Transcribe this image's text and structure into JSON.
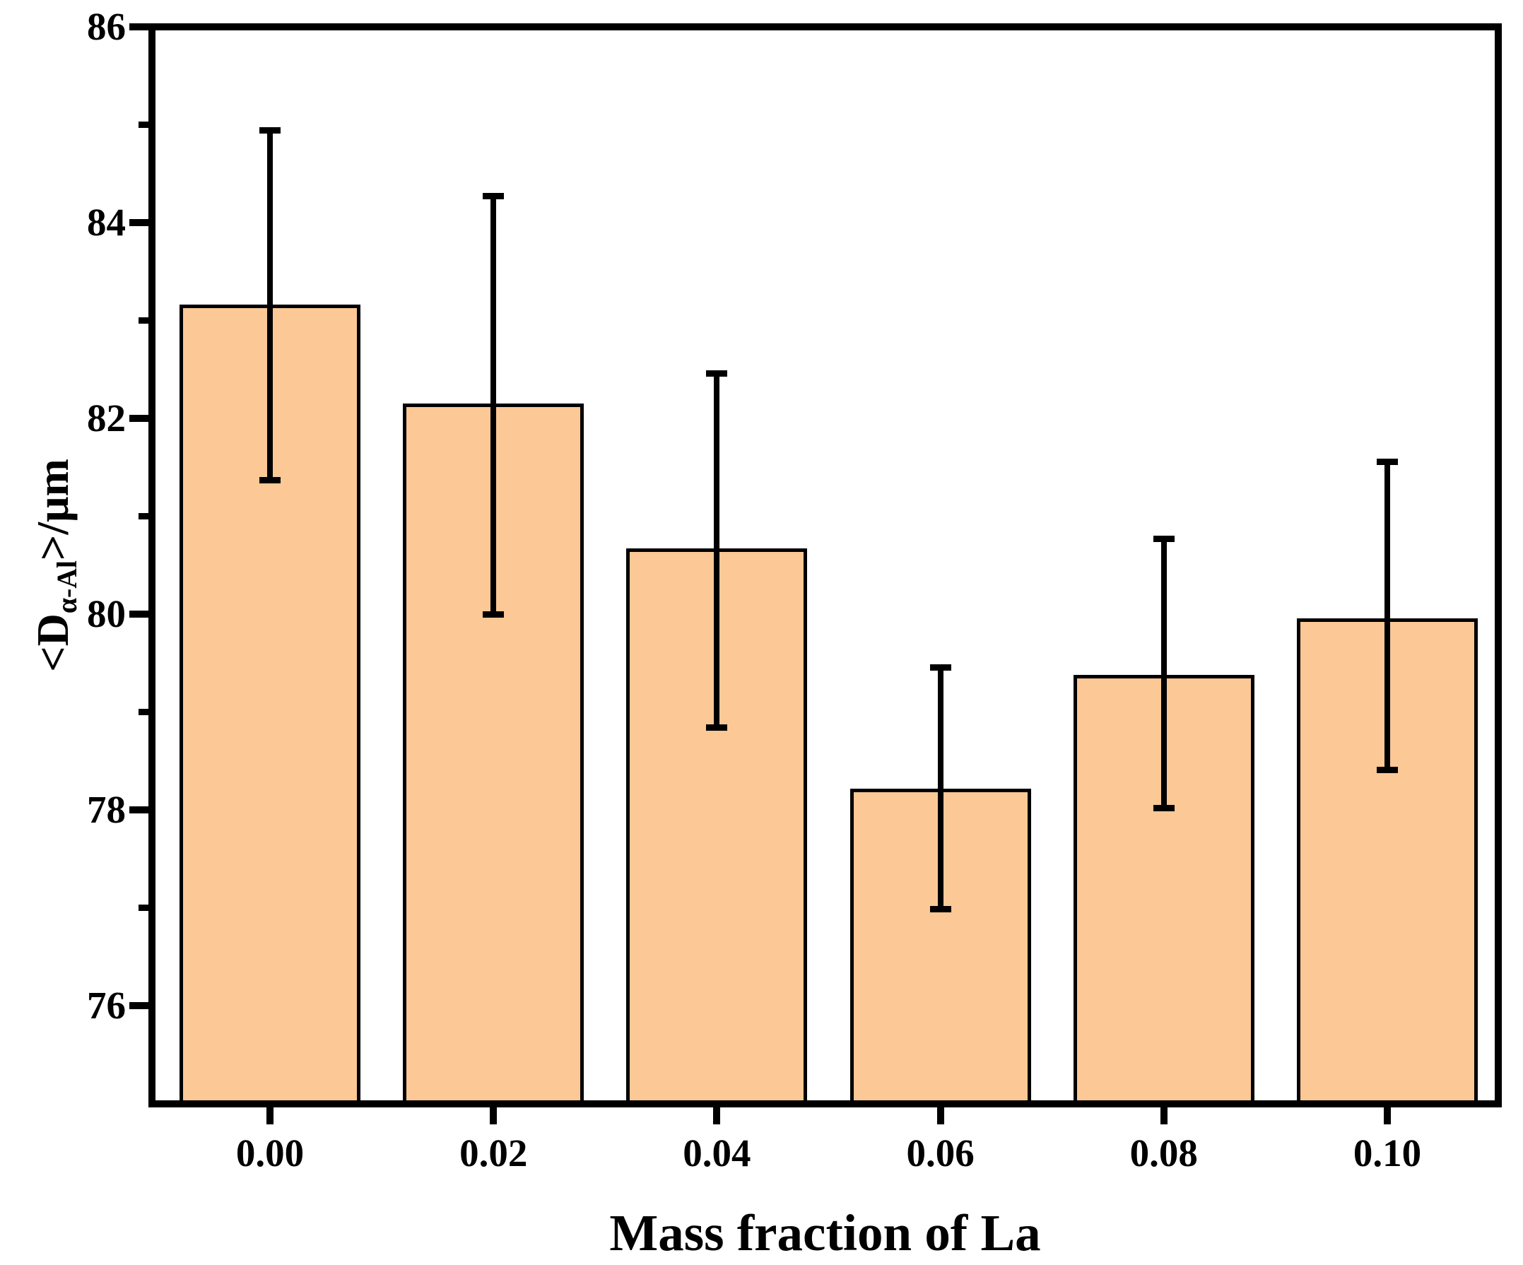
{
  "chart_data": {
    "type": "bar",
    "title": "",
    "xlabel": "Mass fraction of La",
    "ylabel": "<D_(α-Al)>/μm",
    "ylabel_parts": {
      "prefix": "<D",
      "subscript": "α-Al",
      "suffix": ">/μm"
    },
    "categories": [
      "0.00",
      "0.02",
      "0.04",
      "0.06",
      "0.08",
      "0.10"
    ],
    "values": [
      83.14,
      82.13,
      80.65,
      78.2,
      79.36,
      79.94
    ],
    "error_upper_cap": [
      84.94,
      84.27,
      82.46,
      79.46,
      80.77,
      81.56
    ],
    "error_lower_cap": [
      81.37,
      80.0,
      78.84,
      76.99,
      78.02,
      78.41
    ],
    "err_plus": [
      1.8,
      2.14,
      1.81,
      1.26,
      1.41,
      1.62
    ],
    "err_minus": [
      1.77,
      2.13,
      1.81,
      1.21,
      1.34,
      1.53
    ],
    "ylim": [
      75,
      86
    ],
    "yticks_major": [
      76,
      78,
      80,
      82,
      84,
      86
    ],
    "yticks_minor": [
      77,
      79,
      81,
      83,
      85
    ],
    "bar_fill_color": "#FBC896",
    "bar_border_color": "#000000",
    "axis_color": "#000000",
    "background_color": "#FFFFFF",
    "grid": false,
    "legend": false
  }
}
